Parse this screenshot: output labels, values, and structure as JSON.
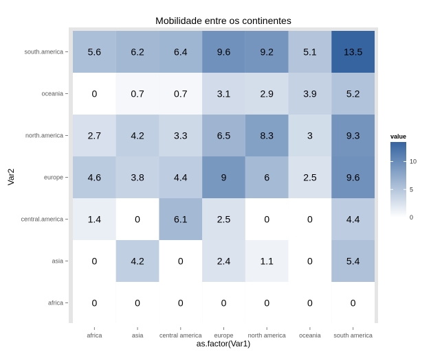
{
  "chart_data": {
    "type": "heatmap",
    "title": "Mobilidade entre os continentes",
    "xlabel": "as.factor(Var1)",
    "ylabel": "Var2",
    "x_categories": [
      "africa",
      "asia",
      "central america",
      "europe",
      "north america",
      "oceania",
      "south america"
    ],
    "y_categories": [
      "africa",
      "asia",
      "central.america",
      "europe",
      "north.america",
      "oceania",
      "south.america"
    ],
    "values": [
      [
        0,
        0,
        0,
        0,
        0,
        0,
        0
      ],
      [
        0,
        4.2,
        0,
        2.4,
        1.1,
        0,
        5.4
      ],
      [
        1.4,
        0,
        6.1,
        2.5,
        0,
        0,
        4.4
      ],
      [
        4.6,
        3.8,
        4.4,
        9,
        6,
        2.5,
        9.6
      ],
      [
        2.7,
        4.2,
        3.3,
        6.5,
        8.3,
        3,
        9.3
      ],
      [
        0,
        0.7,
        0.7,
        3.1,
        2.9,
        3.9,
        5.2
      ],
      [
        5.6,
        6.2,
        6.4,
        9.6,
        9.2,
        5.1,
        13.5
      ]
    ],
    "value_labels": [
      [
        "0",
        "0",
        "0",
        "0",
        "0",
        "0",
        "0"
      ],
      [
        "0",
        "4.2",
        "0",
        "2.4",
        "1.1",
        "0",
        "5.4"
      ],
      [
        "1.4",
        "0",
        "6.1",
        "2.5",
        "0",
        "0",
        "4.4"
      ],
      [
        "4.6",
        "3.8",
        "4.4",
        "9",
        "6",
        "2.5",
        "9.6"
      ],
      [
        "2.7",
        "4.2",
        "3.3",
        "6.5",
        "8.3",
        "3",
        "9.3"
      ],
      [
        "0",
        "0.7",
        "0.7",
        "3.1",
        "2.9",
        "3.9",
        "5.2"
      ],
      [
        "5.6",
        "6.2",
        "6.4",
        "9.6",
        "9.2",
        "5.1",
        "13.5"
      ]
    ],
    "legend": {
      "title": "value",
      "ticks": [
        0,
        5,
        10
      ],
      "range": [
        0,
        13.5
      ],
      "low_color": "#ffffff",
      "high_color": "#3564a0"
    },
    "background_color": "#e5e5e5",
    "grid": false
  }
}
